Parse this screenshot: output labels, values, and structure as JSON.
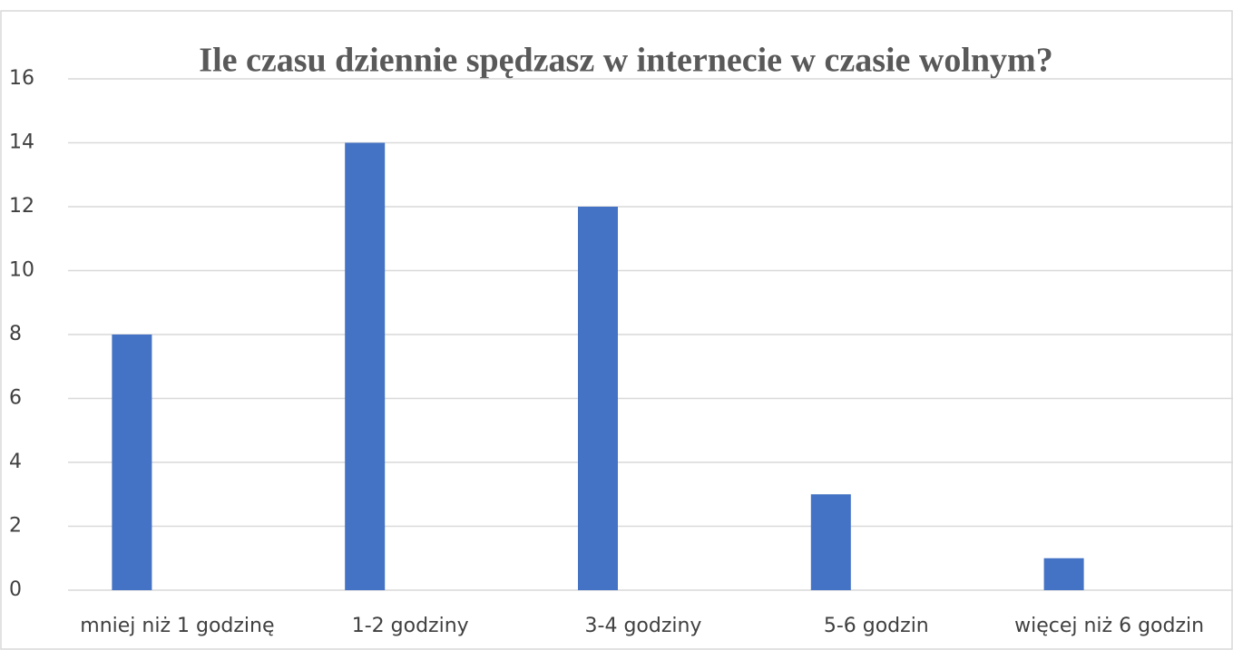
{
  "chart_data": {
    "type": "bar",
    "title": "Ile czasu dziennie spędzasz w internecie w czasie wolnym?",
    "categories": [
      "mniej niż 1 godzinę",
      "1-2 godziny",
      "3-4 godziny",
      "5-6 godzin",
      "więcej niż 6 godzin"
    ],
    "values": [
      8,
      14,
      12,
      3,
      1
    ],
    "color": "#4472c4",
    "ylim": [
      0,
      16
    ],
    "yticks": [
      0,
      2,
      4,
      6,
      8,
      10,
      12,
      14,
      16
    ],
    "grid": true
  }
}
